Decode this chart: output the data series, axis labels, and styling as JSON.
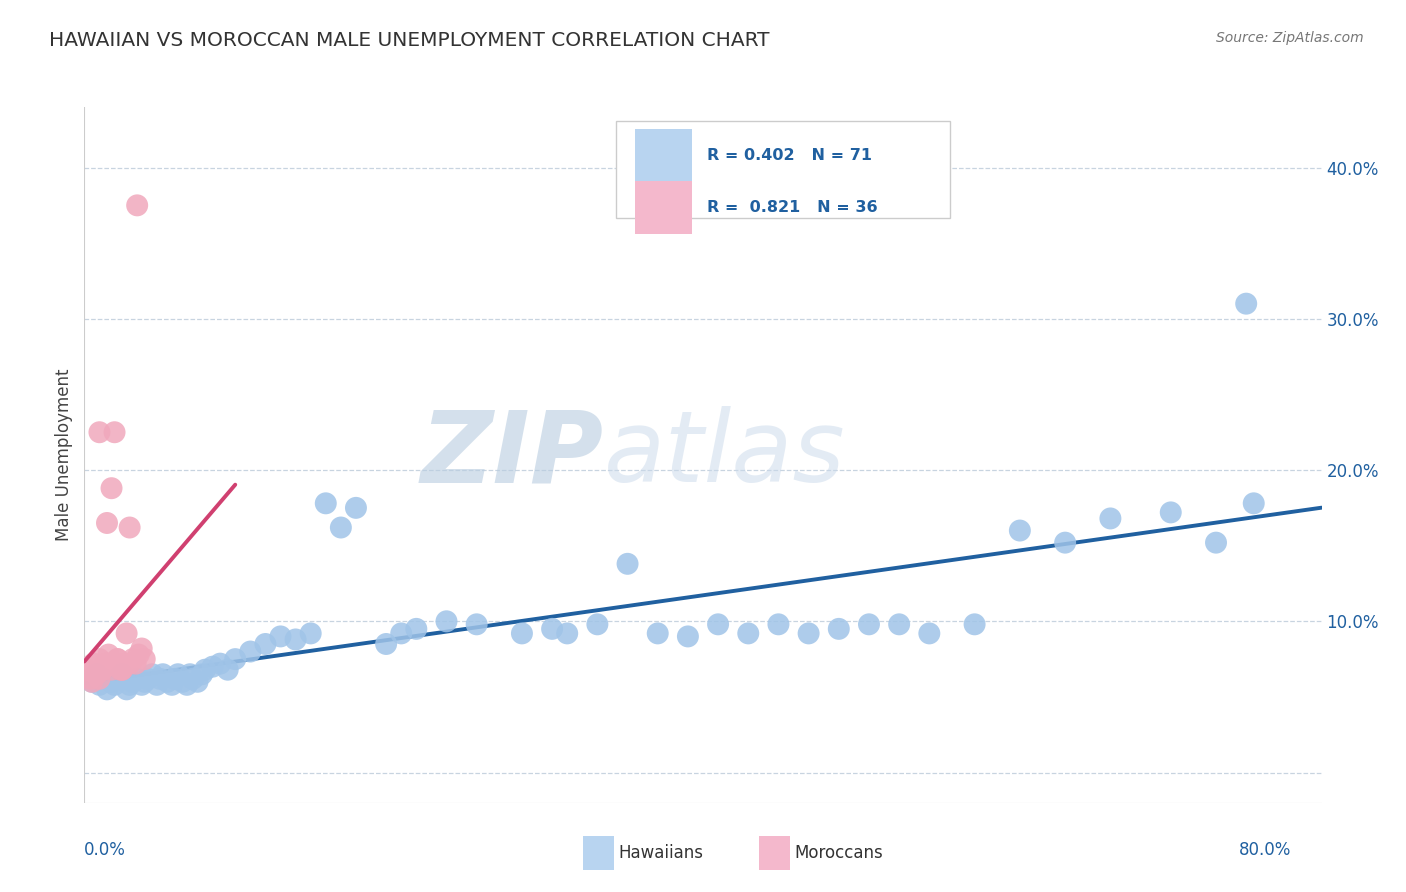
{
  "title": "HAWAIIAN VS MOROCCAN MALE UNEMPLOYMENT CORRELATION CHART",
  "source": "Source: ZipAtlas.com",
  "ylabel": "Male Unemployment",
  "xlim": [
    0.0,
    0.82
  ],
  "ylim": [
    -0.02,
    0.44
  ],
  "yticks": [
    0.0,
    0.1,
    0.2,
    0.3,
    0.4
  ],
  "ytick_labels": [
    "",
    "10.0%",
    "20.0%",
    "30.0%",
    "40.0%"
  ],
  "hawaiian_R": 0.402,
  "hawaiian_N": 71,
  "moroccan_R": 0.821,
  "moroccan_N": 36,
  "blue_color": "#a0c4e8",
  "pink_color": "#f0a8bc",
  "blue_line_color": "#2060a0",
  "pink_line_color": "#d04070",
  "legend_blue_face": "#b8d4f0",
  "legend_pink_face": "#f4b8cc",
  "watermark_zip_color": "#b8cce0",
  "watermark_atlas_color": "#c8d8ea",
  "background_color": "#ffffff",
  "grid_color": "#c8d4e0",
  "hawaiian_x": [
    0.005,
    0.008,
    0.01,
    0.012,
    0.015,
    0.018,
    0.02,
    0.022,
    0.025,
    0.028,
    0.03,
    0.032,
    0.035,
    0.038,
    0.04,
    0.042,
    0.045,
    0.048,
    0.05,
    0.052,
    0.055,
    0.058,
    0.06,
    0.062,
    0.065,
    0.068,
    0.07,
    0.072,
    0.075,
    0.078,
    0.08,
    0.085,
    0.09,
    0.095,
    0.1,
    0.11,
    0.12,
    0.13,
    0.14,
    0.15,
    0.16,
    0.17,
    0.18,
    0.2,
    0.21,
    0.22,
    0.24,
    0.26,
    0.29,
    0.31,
    0.32,
    0.34,
    0.36,
    0.38,
    0.4,
    0.42,
    0.44,
    0.46,
    0.48,
    0.5,
    0.52,
    0.54,
    0.56,
    0.59,
    0.62,
    0.65,
    0.68,
    0.72,
    0.75,
    0.775,
    0.77
  ],
  "hawaiian_y": [
    0.06,
    0.065,
    0.058,
    0.062,
    0.055,
    0.06,
    0.058,
    0.062,
    0.065,
    0.055,
    0.058,
    0.06,
    0.062,
    0.058,
    0.06,
    0.062,
    0.065,
    0.058,
    0.062,
    0.065,
    0.06,
    0.058,
    0.062,
    0.065,
    0.06,
    0.058,
    0.065,
    0.062,
    0.06,
    0.065,
    0.068,
    0.07,
    0.072,
    0.068,
    0.075,
    0.08,
    0.085,
    0.09,
    0.088,
    0.092,
    0.178,
    0.162,
    0.175,
    0.085,
    0.092,
    0.095,
    0.1,
    0.098,
    0.092,
    0.095,
    0.092,
    0.098,
    0.138,
    0.092,
    0.09,
    0.098,
    0.092,
    0.098,
    0.092,
    0.095,
    0.098,
    0.098,
    0.092,
    0.098,
    0.16,
    0.152,
    0.168,
    0.172,
    0.152,
    0.178,
    0.31
  ],
  "moroccan_x": [
    0.002,
    0.004,
    0.006,
    0.008,
    0.01,
    0.012,
    0.014,
    0.016,
    0.018,
    0.02,
    0.022,
    0.024,
    0.026,
    0.028,
    0.03,
    0.032,
    0.034,
    0.036,
    0.038,
    0.04,
    0.005,
    0.008,
    0.01,
    0.012,
    0.015,
    0.018,
    0.02,
    0.022,
    0.025,
    0.028,
    0.01,
    0.015,
    0.02,
    0.025,
    0.03,
    0.035
  ],
  "moroccan_y": [
    0.068,
    0.062,
    0.072,
    0.065,
    0.075,
    0.068,
    0.072,
    0.078,
    0.068,
    0.072,
    0.075,
    0.068,
    0.072,
    0.092,
    0.162,
    0.075,
    0.072,
    0.078,
    0.082,
    0.075,
    0.06,
    0.065,
    0.062,
    0.068,
    0.072,
    0.188,
    0.225,
    0.075,
    0.068,
    0.072,
    0.225,
    0.165,
    0.072,
    0.068,
    0.072,
    0.375
  ]
}
